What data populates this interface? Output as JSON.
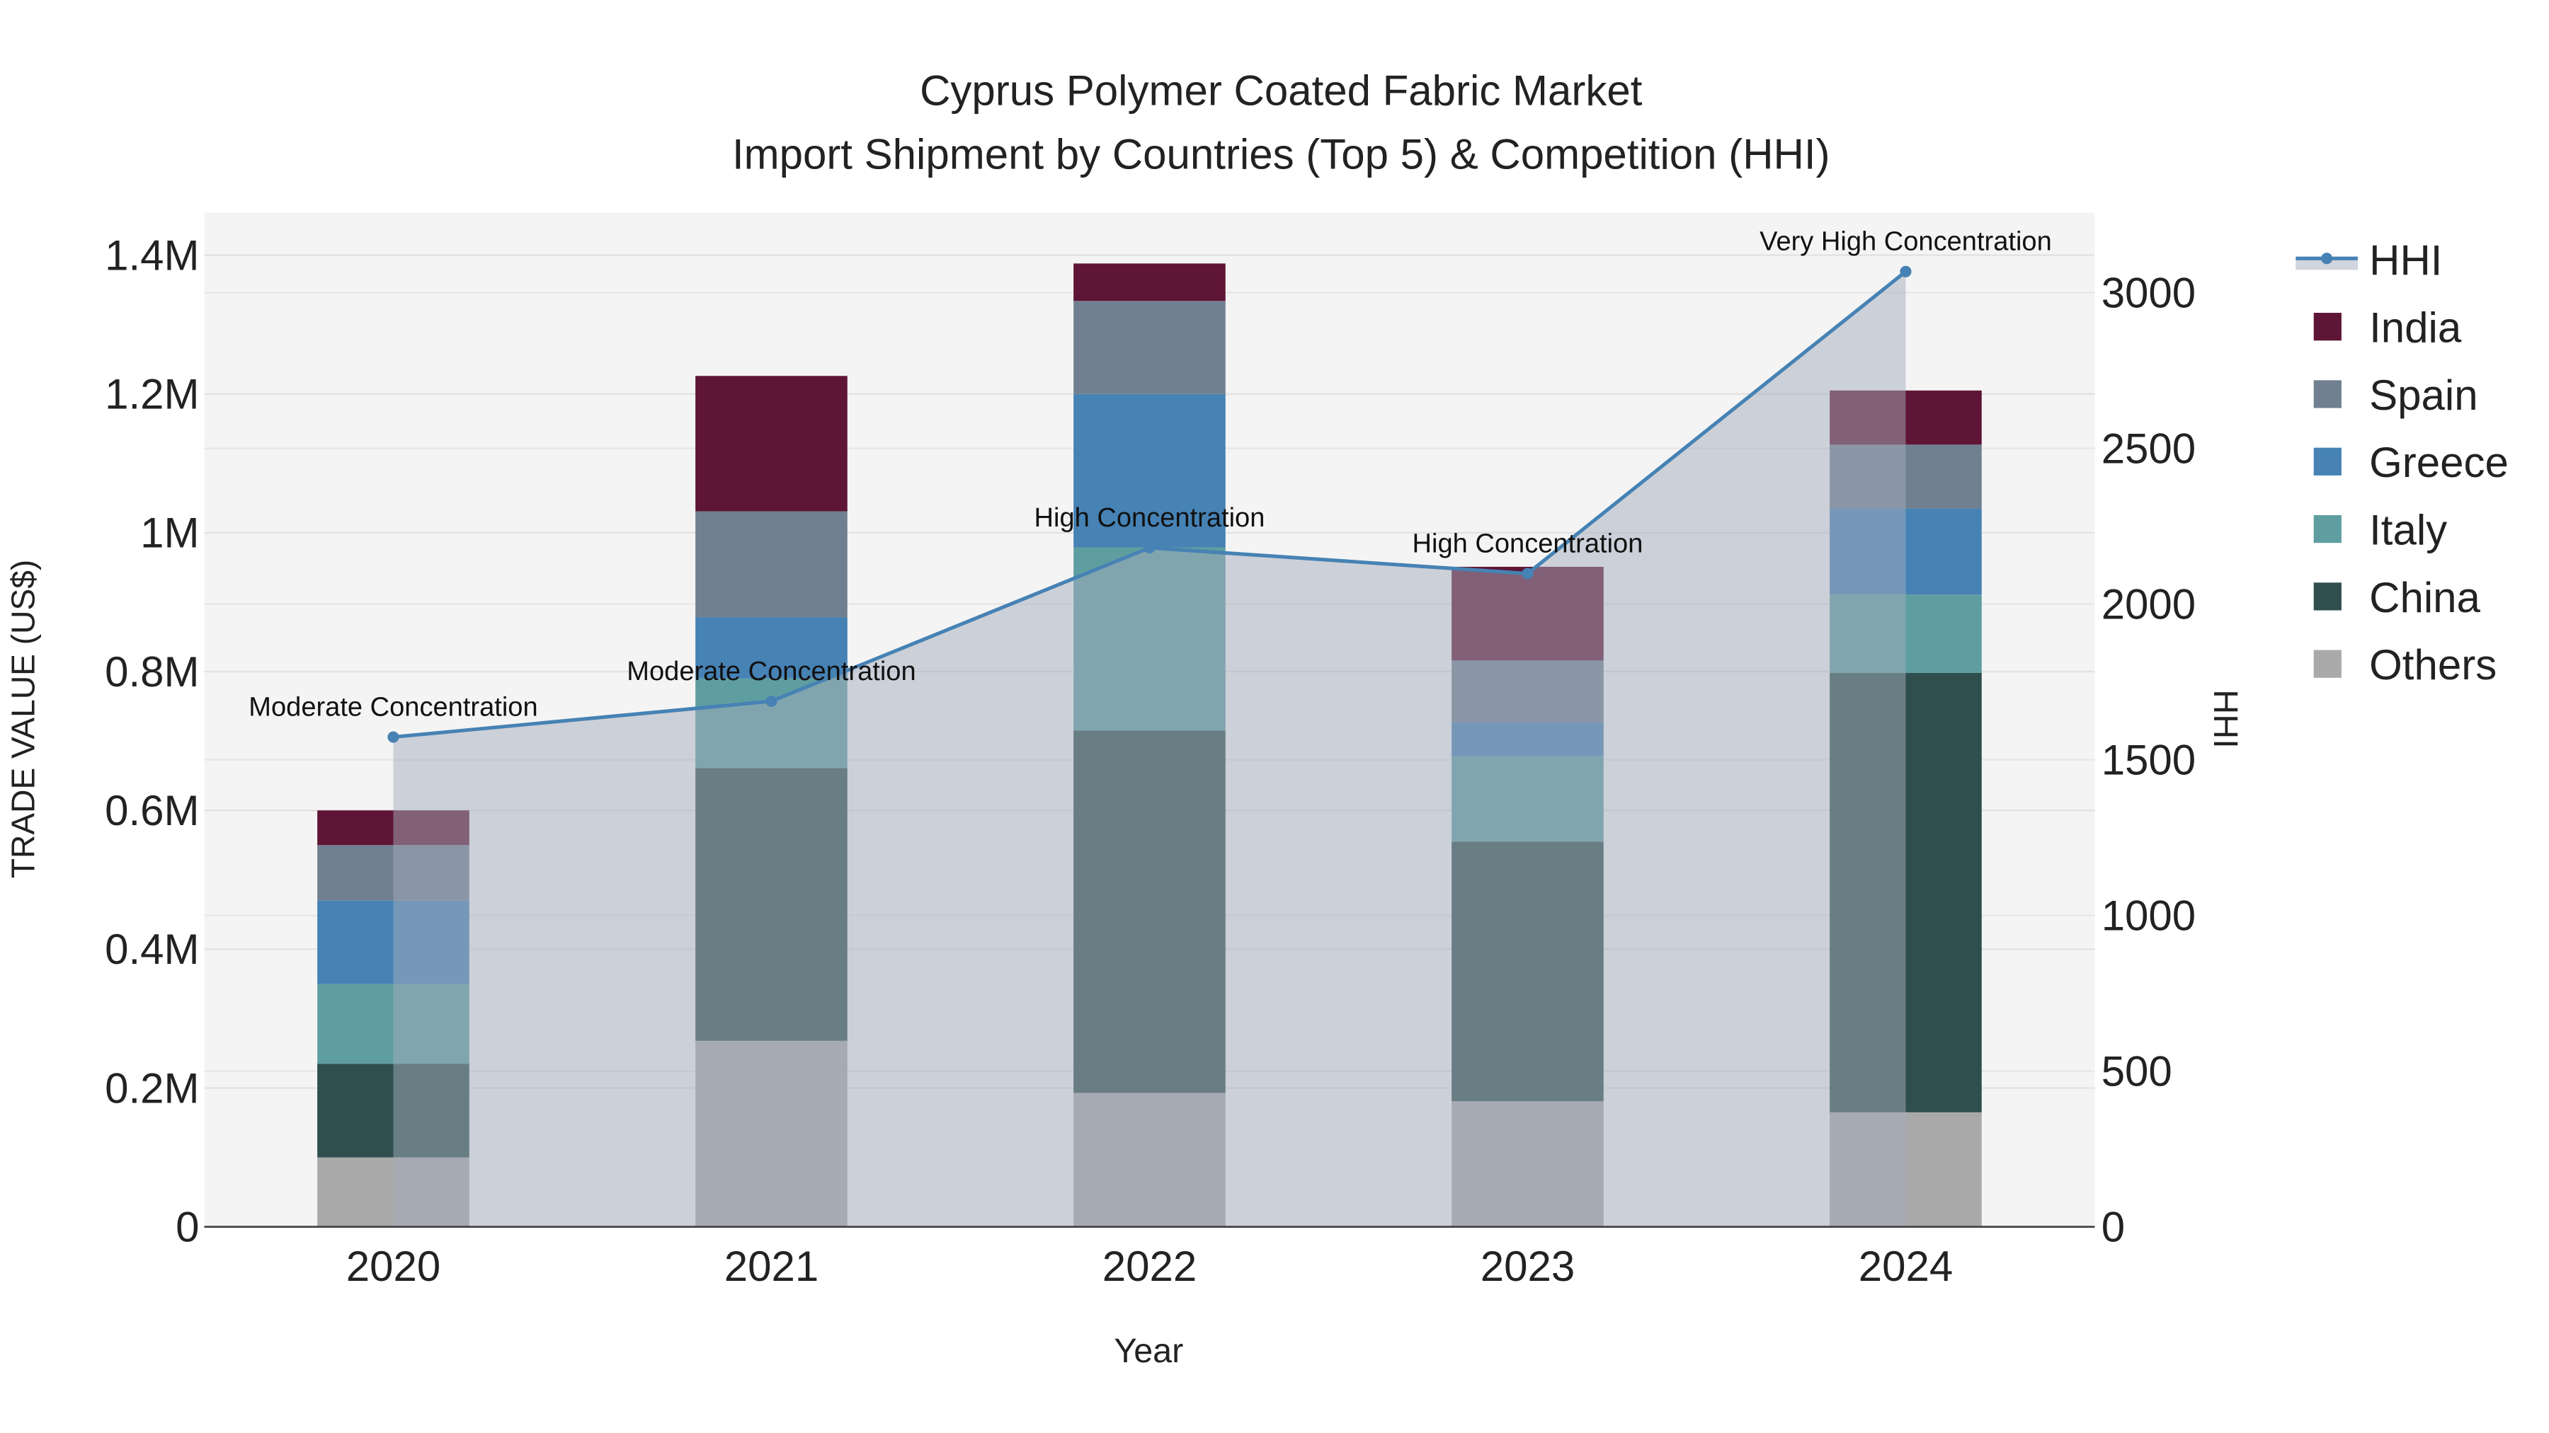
{
  "chart_data": {
    "type": "bar",
    "barmode": "stack",
    "title_line1": "Cyprus Polymer Coated Fabric Market",
    "title_line2": "Import Shipment by Countries (Top 5) & Competition (HHI)",
    "xlabel": "Year",
    "ylabel": "TRADE VALUE (US$)",
    "y2label": "HHI",
    "categories": [
      "2020",
      "2021",
      "2022",
      "2023",
      "2024"
    ],
    "ylim": [
      0,
      1460000
    ],
    "y2lim": [
      0,
      3250
    ],
    "yticks": [
      0,
      200000,
      400000,
      600000,
      800000,
      1000000,
      1200000,
      1400000
    ],
    "ytick_labels": [
      "0",
      "0.2M",
      "0.4M",
      "0.6M",
      "0.8M",
      "1M",
      "1.2M",
      "1.4M"
    ],
    "y2ticks": [
      0,
      500,
      1000,
      1500,
      2000,
      2500,
      3000
    ],
    "y2tick_labels": [
      "0",
      "500",
      "1000",
      "1500",
      "2000",
      "2500",
      "3000"
    ],
    "grid": true,
    "legend_position": "right",
    "series": [
      {
        "name": "Others",
        "color": "#a9a9a9",
        "values": [
          100000,
          268000,
          193000,
          181000,
          165000
        ]
      },
      {
        "name": "China",
        "color": "#2f4f4f",
        "values": [
          135000,
          393000,
          522000,
          374000,
          633000
        ]
      },
      {
        "name": "Italy",
        "color": "#5f9ea0",
        "values": [
          115000,
          129000,
          264000,
          123000,
          113000
        ]
      },
      {
        "name": "Greece",
        "color": "#4682b4",
        "values": [
          120000,
          88000,
          221000,
          49000,
          124000
        ]
      },
      {
        "name": "Spain",
        "color": "#708090",
        "values": [
          80000,
          153000,
          134000,
          89000,
          92000
        ]
      },
      {
        "name": "India",
        "color": "#5f1535",
        "values": [
          50000,
          195000,
          54000,
          135000,
          78000
        ]
      }
    ],
    "hhi": {
      "name": "HHI",
      "color": "#4682b4",
      "values": [
        1573,
        1688,
        2181,
        2098,
        3068
      ],
      "annotations": [
        "Moderate Concentration",
        "Moderate Concentration",
        "High Concentration",
        "High Concentration",
        "Very High Concentration"
      ]
    },
    "legend_order": [
      "HHI",
      "India",
      "Spain",
      "Greece",
      "Italy",
      "China",
      "Others"
    ]
  }
}
